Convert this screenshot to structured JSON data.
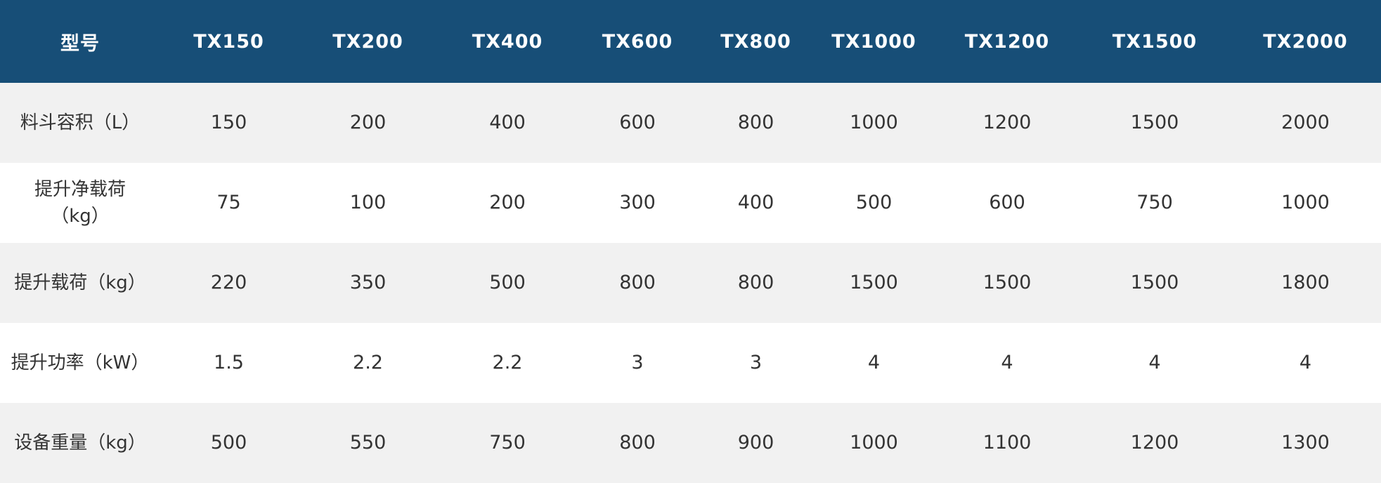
{
  "table": {
    "headers": [
      "型号",
      "TX150",
      "TX200",
      "TX400",
      "TX600",
      "TX800",
      "TX1000",
      "TX1200",
      "TX1500",
      "TX2000"
    ],
    "rows": [
      {
        "label": "料斗容积（L）",
        "values": [
          "150",
          "200",
          "400",
          "600",
          "800",
          "1000",
          "1200",
          "1500",
          "2000"
        ]
      },
      {
        "label": "提升净载荷（kg）",
        "values": [
          "75",
          "100",
          "200",
          "300",
          "400",
          "500",
          "600",
          "750",
          "1000"
        ]
      },
      {
        "label": "提升载荷（kg）",
        "values": [
          "220",
          "350",
          "500",
          "800",
          "800",
          "1500",
          "1500",
          "1500",
          "1800"
        ]
      },
      {
        "label": "提升功率（kW）",
        "values": [
          "1.5",
          "2.2",
          "2.2",
          "3",
          "3",
          "4",
          "4",
          "4",
          "4"
        ]
      },
      {
        "label": "设备重量（kg）",
        "values": [
          "500",
          "550",
          "750",
          "800",
          "900",
          "1000",
          "1100",
          "1200",
          "1300"
        ]
      }
    ]
  },
  "colors": {
    "header_bg": "#174e77",
    "header_text": "#ffffff",
    "row_alt": "#f1f1f1",
    "text": "#333333"
  }
}
